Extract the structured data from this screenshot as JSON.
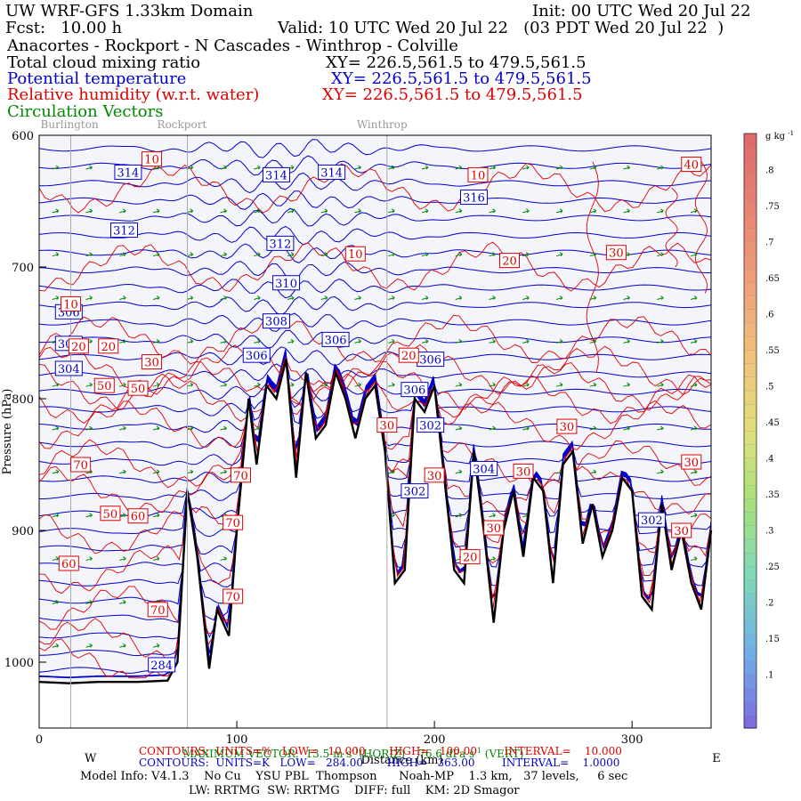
{
  "header": {
    "model": "UW WRF-GFS 1.33km Domain",
    "init": "Init: 00 UTC Wed 20 Jul 22",
    "fcst": "Fcst:   10.00 h",
    "valid": "Valid: 10 UTC Wed 20 Jul 22   (03 PDT Wed 20 Jul 22  )",
    "route": "Anacortes - Rockport - N Cascades - Winthrop - Colville",
    "field1": "Total cloud mixing ratio",
    "field1_xy": "XY= 226.5,561.5 to 479.5,561.5",
    "field2": "Potential temperature",
    "field2_xy": "XY= 226.5,561.5 to 479.5,561.5",
    "field3": "Relative humidity (w.r.t. water)",
    "field3_xy": "XY= 226.5,561.5 to 479.5,561.5",
    "field4": "Circulation Vectors"
  },
  "colors": {
    "potential_temperature": "#0000cc",
    "relative_humidity": "#dd0000",
    "vectors": "#008800",
    "background": "#f4f4fb"
  },
  "chart_data": {
    "type": "cross-section",
    "xlabel": "Distance (km)",
    "ylabel": "Pressure (hPa)",
    "x_ticks": [
      0,
      100,
      200,
      300
    ],
    "y_ticks": [
      600,
      700,
      800,
      900,
      1000
    ],
    "xlim": [
      0,
      340
    ],
    "ylim": [
      1050,
      600
    ],
    "direction_left": "W",
    "direction_right": "E",
    "locations": [
      {
        "name": "Burlington",
        "x_km": 16
      },
      {
        "name": "Rockport",
        "x_km": 75
      },
      {
        "name": "Winthrop",
        "x_km": 176
      }
    ],
    "terrain": {
      "x_km": [
        0,
        15,
        30,
        50,
        65,
        70,
        75,
        80,
        86,
        90,
        96,
        100,
        106,
        110,
        115,
        120,
        125,
        130,
        135,
        140,
        145,
        150,
        155,
        160,
        165,
        170,
        175,
        180,
        185,
        190,
        195,
        200,
        205,
        210,
        215,
        220,
        225,
        230,
        235,
        240,
        245,
        250,
        255,
        260,
        265,
        270,
        275,
        280,
        285,
        290,
        295,
        300,
        305,
        310,
        315,
        320,
        325,
        330,
        335,
        340
      ],
      "pressure_hPa": [
        1015,
        1016,
        1015,
        1015,
        1014,
        1000,
        870,
        920,
        1005,
        960,
        980,
        900,
        800,
        850,
        790,
        800,
        770,
        860,
        780,
        830,
        820,
        780,
        800,
        830,
        800,
        790,
        840,
        940,
        930,
        800,
        810,
        790,
        860,
        930,
        940,
        840,
        900,
        970,
        900,
        870,
        920,
        860,
        870,
        940,
        850,
        840,
        910,
        880,
        920,
        900,
        860,
        870,
        950,
        960,
        880,
        930,
        900,
        940,
        960,
        900
      ]
    },
    "theta_contours": [
      {
        "value": 284,
        "label": "284"
      },
      {
        "value": 302,
        "label": "302"
      },
      {
        "value": 304,
        "label": "304"
      },
      {
        "value": 306,
        "label": "306"
      },
      {
        "value": 308,
        "label": "308"
      },
      {
        "value": 310,
        "label": "310"
      },
      {
        "value": 312,
        "label": "312"
      },
      {
        "value": 314,
        "label": "314"
      },
      {
        "value": 316,
        "label": "316"
      }
    ],
    "rh_labels": [
      "10",
      "20",
      "30",
      "40",
      "50",
      "60",
      "70"
    ],
    "colorbar": {
      "unit": "g kg",
      "unit_sup": "-1",
      "labels": [
        ".8",
        ".75",
        ".7",
        ".65",
        ".6",
        ".55",
        ".5",
        ".45",
        ".4",
        ".35",
        ".3",
        ".25",
        ".2",
        ".15",
        ".1"
      ],
      "values": [
        0.8,
        0.75,
        0.7,
        0.65,
        0.6,
        0.55,
        0.5,
        0.45,
        0.4,
        0.35,
        0.3,
        0.25,
        0.2,
        0.15,
        0.1
      ],
      "range": [
        0.025,
        0.85
      ]
    },
    "max_vector": "MAXIMUM VECTOR:  13.5 m s",
    "max_vector_horiz": "(HORIZ)    76.6 dPa s",
    "max_vector_vert": "(VERT)"
  },
  "footer": {
    "contours_rh": "CONTOURS:  UNITS=%   LOW=   10.000       HIGH=   100.00        INTERVAL=    10.000",
    "contours_theta": "CONTOURS:  UNITS=K   LOW=   284.00       HIGH=   363.00        INTERVAL=    1.0000",
    "model_info": "Model Info: V4.1.3    No Cu    YSU PBL  Thompson      Noah-MP    1.3 km,   37 levels,     6 sec",
    "physics": "LW: RRTMG  SW: RRTMG    DIFF: full    KM: 2D Smagor"
  }
}
